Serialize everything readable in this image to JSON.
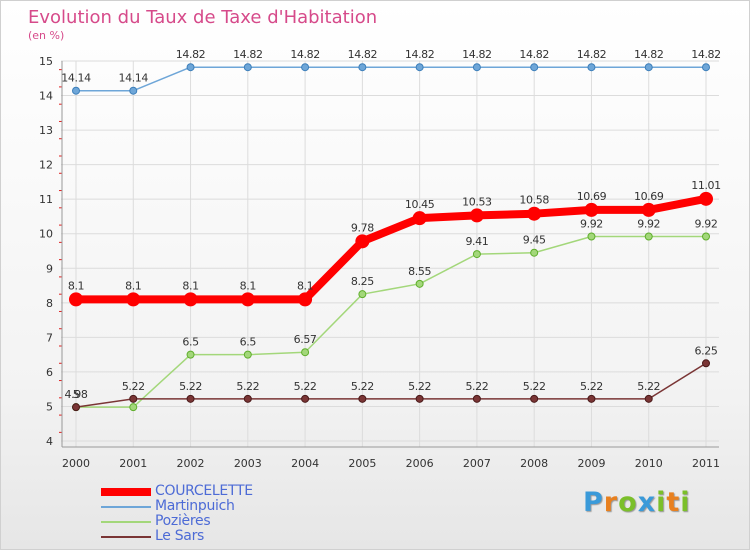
{
  "header": {
    "title": "Evolution du Taux de Taxe d'Habitation",
    "subtitle": "(en %)"
  },
  "logo": {
    "text": "Proxiti",
    "letter_colors": [
      "#3a9ad9",
      "#e8801f",
      "#7bbf2a",
      "#3a9ad9",
      "#7bbf2a",
      "#e8801f",
      "#7bbf2a"
    ]
  },
  "chart_data": {
    "type": "line",
    "x": [
      "2000",
      "2001",
      "2002",
      "2003",
      "2004",
      "2005",
      "2006",
      "2007",
      "2008",
      "2009",
      "2010",
      "2011"
    ],
    "ylim": [
      4,
      15
    ],
    "yticks": [
      "4",
      "5",
      "6",
      "7",
      "8",
      "9",
      "10",
      "11",
      "12",
      "13",
      "14",
      "15"
    ],
    "grid": true,
    "legend_position": "bottom-left",
    "series": [
      {
        "name": "COURCELETTE",
        "color": "#ff0000",
        "values": [
          8.1,
          8.1,
          8.1,
          8.1,
          8.1,
          9.78,
          10.45,
          10.53,
          10.58,
          10.69,
          10.69,
          11.01
        ],
        "labels": [
          "8.1",
          "8.1",
          "8.1",
          "8.1",
          "8.1",
          "9.78",
          "10.45",
          "10.53",
          "10.58",
          "10.69",
          "10.69",
          "11.01"
        ]
      },
      {
        "name": "Martinpuich",
        "color": "#6ea6d8",
        "values": [
          14.14,
          14.14,
          14.82,
          14.82,
          14.82,
          14.82,
          14.82,
          14.82,
          14.82,
          14.82,
          14.82,
          14.82
        ],
        "labels": [
          "14.14",
          "14.14",
          "14.82",
          "14.82",
          "14.82",
          "14.82",
          "14.82",
          "14.82",
          "14.82",
          "14.82",
          "14.82",
          "14.82"
        ]
      },
      {
        "name": "Pozières",
        "color": "#a3d77a",
        "values": [
          4.98,
          4.98,
          6.5,
          6.5,
          6.57,
          8.25,
          8.55,
          9.41,
          9.45,
          9.92,
          9.92,
          9.92
        ],
        "labels": [
          "4.98",
          "",
          "6.5",
          "6.5",
          "6.57",
          "8.25",
          "8.55",
          "9.41",
          "9.45",
          "9.92",
          "9.92",
          "9.92"
        ]
      },
      {
        "name": "Le Sars",
        "color": "#7a3535",
        "values": [
          4.98,
          5.22,
          5.22,
          5.22,
          5.22,
          5.22,
          5.22,
          5.22,
          5.22,
          5.22,
          5.22,
          6.25
        ],
        "labels": [
          "5",
          "5.22",
          "5.22",
          "5.22",
          "5.22",
          "5.22",
          "5.22",
          "5.22",
          "5.22",
          "5.22",
          "5.22",
          "6.25"
        ]
      }
    ]
  }
}
